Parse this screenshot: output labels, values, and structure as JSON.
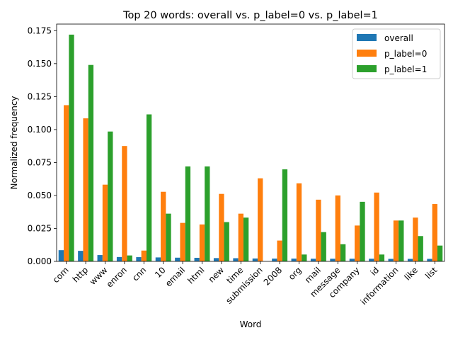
{
  "chart_data": {
    "type": "bar",
    "title": "Top 20 words: overall vs. p_label=0 vs. p_label=1",
    "xlabel": "Word",
    "ylabel": "Normalized frequency",
    "categories": [
      "com",
      "http",
      "www",
      "enron",
      "cnn",
      "10",
      "email",
      "html",
      "new",
      "time",
      "submission",
      "2008",
      "org",
      "mail",
      "message",
      "company",
      "id",
      "information",
      "like",
      "list"
    ],
    "series": [
      {
        "name": "overall",
        "color": "#1f77b4",
        "values": [
          0.0085,
          0.008,
          0.0048,
          0.0033,
          0.0032,
          0.003,
          0.0028,
          0.0027,
          0.0025,
          0.0024,
          0.0022,
          0.0021,
          0.0021,
          0.002,
          0.002,
          0.002,
          0.002,
          0.0019,
          0.0019,
          0.0019
        ]
      },
      {
        "name": "p_label=0",
        "color": "#ff7f0e",
        "values": [
          0.1185,
          0.1085,
          0.0582,
          0.0875,
          0.0082,
          0.0528,
          0.0292,
          0.028,
          0.0512,
          0.0362,
          0.063,
          0.0158,
          0.0592,
          0.0468,
          0.05,
          0.0272,
          0.0522,
          0.031,
          0.0332,
          0.0435
        ]
      },
      {
        "name": "p_label=1",
        "color": "#2ca02c",
        "values": [
          0.172,
          0.149,
          0.0985,
          0.0045,
          0.1115,
          0.0362,
          0.072,
          0.072,
          0.0298,
          0.0332,
          0.0,
          0.0698,
          0.0052,
          0.0222,
          0.013,
          0.0452,
          0.0052,
          0.031,
          0.0192,
          0.012
        ]
      }
    ],
    "ylim": [
      0,
      0.18
    ],
    "yticks": [
      "0.000",
      "0.025",
      "0.050",
      "0.075",
      "0.100",
      "0.125",
      "0.150",
      "0.175"
    ],
    "legend_position": "top-right",
    "grid": false
  }
}
